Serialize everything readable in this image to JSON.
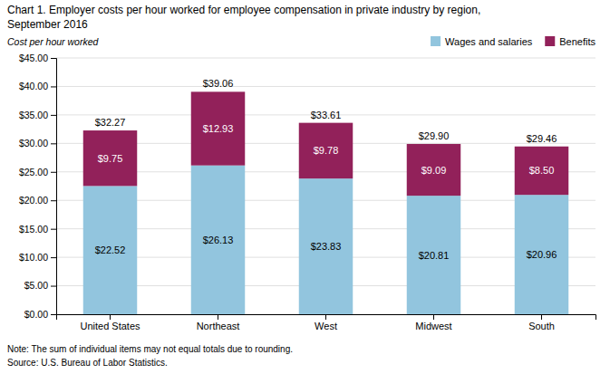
{
  "chart_data": {
    "type": "bar",
    "stacked": true,
    "title": "Chart 1. Employer costs per hour worked for employee compensation in private industry by region,",
    "subtitle": "September 2016",
    "y_label": "Cost per hour worked",
    "categories": [
      "United States",
      "Northeast",
      "West",
      "Midwest",
      "South"
    ],
    "series": [
      {
        "name": "Wages and salaries",
        "color": "#92C5DE",
        "values": [
          22.52,
          26.13,
          23.83,
          20.81,
          20.96
        ],
        "value_labels": [
          "$22.52",
          "$26.13",
          "$23.83",
          "$20.81",
          "$20.96"
        ]
      },
      {
        "name": "Benefits",
        "color": "#92215A",
        "values": [
          9.75,
          12.93,
          9.78,
          9.09,
          8.5
        ],
        "value_labels": [
          "$9.75",
          "$12.93",
          "$9.78",
          "$9.09",
          "$8.50"
        ]
      }
    ],
    "totals": [
      32.27,
      39.06,
      33.61,
      29.9,
      29.46
    ],
    "total_labels": [
      "$32.27",
      "$39.06",
      "$33.61",
      "$29.90",
      "$29.46"
    ],
    "data_labels": true,
    "ylim": [
      0,
      45
    ],
    "yticks": [
      {
        "value": 0,
        "label": "$0.00"
      },
      {
        "value": 5,
        "label": "$5.00"
      },
      {
        "value": 10,
        "label": "$10.00"
      },
      {
        "value": 15,
        "label": "$15.00"
      },
      {
        "value": 20,
        "label": "$20.00"
      },
      {
        "value": 25,
        "label": "$25.00"
      },
      {
        "value": 30,
        "label": "$30.00"
      },
      {
        "value": 35,
        "label": "$35.00"
      },
      {
        "value": 40,
        "label": "$40.00"
      },
      {
        "value": 45,
        "label": "$45.00"
      }
    ],
    "grid": true,
    "legend": "upper right",
    "annotations": [
      "Note: The sum of individual items may not equal totals due to rounding.",
      "Source: U.S. Bureau of Labor Statistics."
    ]
  }
}
